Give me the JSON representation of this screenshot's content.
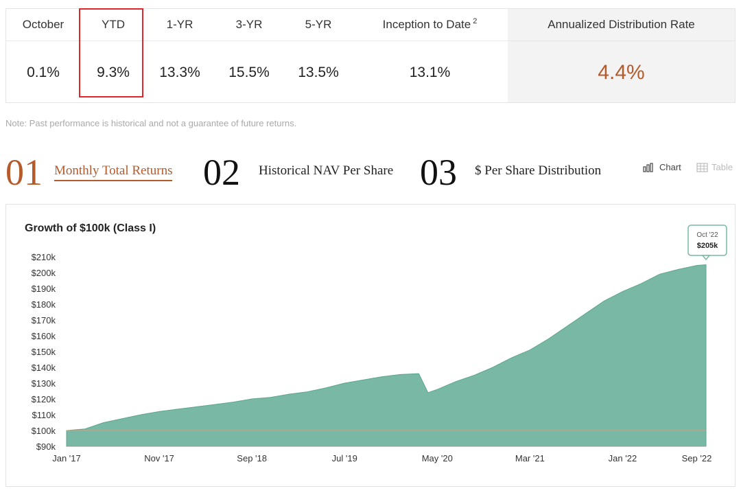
{
  "performance": {
    "columns": [
      {
        "label": "October",
        "value": "0.1%"
      },
      {
        "label": "YTD",
        "value": "9.3%"
      },
      {
        "label": "1-YR",
        "value": "13.3%"
      },
      {
        "label": "3-YR",
        "value": "15.5%"
      },
      {
        "label": "5-YR",
        "value": "13.5%"
      },
      {
        "label": "Inception to Date",
        "sup": "2",
        "value": "13.1%"
      }
    ],
    "rate": {
      "label": "Annualized Distribution Rate",
      "value": "4.4%"
    }
  },
  "note": "Note: Past performance is historical and not a guarantee of future returns.",
  "tabs": [
    {
      "num": "01",
      "label": "Monthly Total Returns",
      "active": true
    },
    {
      "num": "02",
      "label": "Historical NAV Per Share",
      "active": false
    },
    {
      "num": "03",
      "label": "$ Per Share Distribution",
      "active": false
    }
  ],
  "view": {
    "chart_label": "Chart",
    "table_label": "Table"
  },
  "colors": {
    "accent": "#b45a2b",
    "area": "#78b8a4",
    "highlight": "#e0262a",
    "baseline": "#e09a7e"
  },
  "chart_data": {
    "type": "area",
    "title": "Growth of $100k (Class I)",
    "x_ticks": [
      "Jan '17",
      "Nov '17",
      "Sep '18",
      "Jul '19",
      "May '20",
      "Mar '21",
      "Jan '22",
      "Sep '22"
    ],
    "y_ticks": [
      "$90k",
      "$100k",
      "$110k",
      "$120k",
      "$130k",
      "$140k",
      "$150k",
      "$160k",
      "$170k",
      "$180k",
      "$190k",
      "$200k",
      "$210k"
    ],
    "ylim": [
      90,
      210
    ],
    "units": "$k",
    "baseline": 100,
    "series": [
      {
        "x": [
          "Jan '17",
          "Mar '17",
          "May '17",
          "Jul '17",
          "Sep '17",
          "Nov '17",
          "Jan '18",
          "Mar '18",
          "May '18",
          "Jul '18",
          "Sep '18",
          "Nov '18",
          "Jan '19",
          "Mar '19",
          "May '19",
          "Jul '19",
          "Sep '19",
          "Nov '19",
          "Jan '20",
          "Mar '20",
          "Apr '20",
          "May '20",
          "Jul '20",
          "Sep '20",
          "Nov '20",
          "Jan '21",
          "Mar '21",
          "May '21",
          "Jul '21",
          "Sep '21",
          "Nov '21",
          "Jan '22",
          "Mar '22",
          "May '22",
          "Jul '22",
          "Sep '22",
          "Oct '22"
        ],
        "values": [
          100,
          101,
          105,
          107.5,
          110,
          112,
          113.5,
          115,
          116.5,
          118,
          120,
          121,
          123,
          124.5,
          127,
          130,
          132,
          134,
          135.5,
          136,
          124,
          126,
          131,
          135,
          140,
          146,
          151,
          158,
          166,
          174,
          182,
          188,
          193,
          199,
          202,
          204.5,
          205
        ]
      }
    ],
    "tooltip": {
      "date": "Oct '22",
      "value": "$205k"
    }
  }
}
